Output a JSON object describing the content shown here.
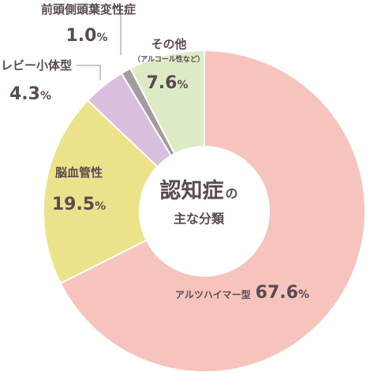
{
  "chart_data": {
    "type": "pie",
    "subtype": "donut",
    "title_main": "認知症",
    "title_particle": "の",
    "title_sub": "主な分類",
    "categories": [
      "アルツハイマー型",
      "脳血管性",
      "レビー小体型",
      "前頭側頭葉変性症",
      "その他"
    ],
    "values": [
      67.6,
      19.5,
      4.3,
      1.0,
      7.6
    ],
    "value_labels": [
      "67.6",
      "19.5",
      "4.3",
      "1.0",
      "7.6"
    ],
    "unit": "%",
    "notes": {
      "その他": "（アルコール性など）"
    },
    "colors": [
      "#f6c4bd",
      "#ebe28a",
      "#d9bfdd",
      "#a49b9f",
      "#ddebc5"
    ],
    "start_angle_deg": 0,
    "direction": "clockwise",
    "legend": "none (direct labels)"
  }
}
